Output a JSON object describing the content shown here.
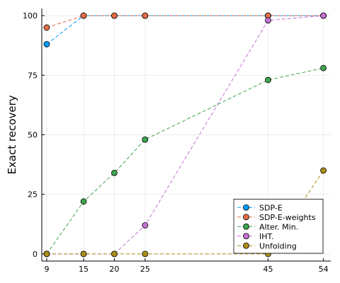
{
  "chart_data": {
    "type": "line",
    "title": "",
    "xlabel": "",
    "ylabel": "Exact recovery",
    "x": [
      9,
      15,
      20,
      25,
      45,
      54
    ],
    "xticks": [
      9,
      15,
      20,
      25,
      45,
      54
    ],
    "yticks": [
      0,
      25,
      50,
      75,
      100
    ],
    "xlim": [
      8.2,
      55.2
    ],
    "ylim": [
      -3,
      103
    ],
    "grid": true,
    "legend_position": "bottom-right",
    "series": [
      {
        "name": "SDP-E",
        "color": "#009AFA",
        "values": [
          88,
          100,
          100,
          100,
          100,
          100
        ]
      },
      {
        "name": "SDP-E-weights",
        "color": "#E36F47",
        "values": [
          95,
          100,
          100,
          100,
          100,
          100
        ]
      },
      {
        "name": "Alter. Min.",
        "color": "#3EA44E",
        "values": [
          0,
          22,
          34,
          48,
          73,
          78
        ]
      },
      {
        "name": "IHT.",
        "color": "#C371D2",
        "values": [
          0,
          0,
          0,
          12,
          98,
          100
        ]
      },
      {
        "name": "Unfolding",
        "color": "#AC8E18",
        "values": [
          0,
          0,
          0,
          0,
          0,
          35
        ]
      }
    ]
  }
}
